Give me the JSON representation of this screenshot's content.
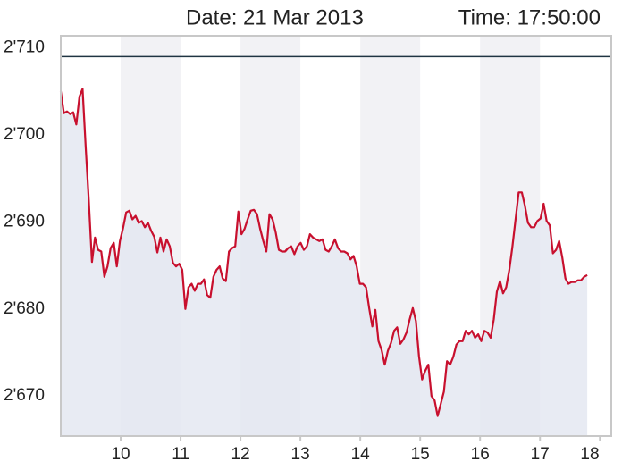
{
  "header": {
    "date": "Date: 21 Mar 2013",
    "time": "Time: 17:50:00"
  },
  "chart_data": {
    "type": "line",
    "x": [
      9.0,
      9.052,
      9.104,
      9.156,
      9.208,
      9.26,
      9.312,
      9.364,
      9.416,
      9.468,
      9.52,
      9.572,
      9.624,
      9.676,
      9.728,
      9.78,
      9.832,
      9.884,
      9.936,
      9.988,
      10.04,
      10.092,
      10.144,
      10.196,
      10.248,
      10.3,
      10.352,
      10.404,
      10.456,
      10.508,
      10.56,
      10.612,
      10.664,
      10.716,
      10.768,
      10.82,
      10.872,
      10.924,
      10.976,
      11.028,
      11.08,
      11.132,
      11.184,
      11.236,
      11.288,
      11.34,
      11.392,
      11.444,
      11.496,
      11.548,
      11.6,
      11.652,
      11.704,
      11.756,
      11.808,
      11.86,
      11.912,
      11.964,
      12.016,
      12.068,
      12.12,
      12.172,
      12.224,
      12.276,
      12.328,
      12.38,
      12.432,
      12.484,
      12.536,
      12.588,
      12.64,
      12.692,
      12.744,
      12.796,
      12.848,
      12.9,
      12.952,
      13.004,
      13.056,
      13.108,
      13.16,
      13.212,
      13.264,
      13.316,
      13.368,
      13.42,
      13.472,
      13.524,
      13.576,
      13.628,
      13.68,
      13.732,
      13.784,
      13.836,
      13.888,
      13.94,
      13.992,
      14.044,
      14.096,
      14.148,
      14.2,
      14.252,
      14.304,
      14.356,
      14.408,
      14.46,
      14.512,
      14.564,
      14.616,
      14.668,
      14.72,
      14.772,
      14.824,
      14.876,
      14.928,
      14.98,
      15.032,
      15.084,
      15.136,
      15.188,
      15.24,
      15.292,
      15.344,
      15.396,
      15.448,
      15.5,
      15.552,
      15.604,
      15.656,
      15.708,
      15.76,
      15.812,
      15.864,
      15.916,
      15.968,
      16.02,
      16.072,
      16.124,
      16.176,
      16.228,
      16.28,
      16.332,
      16.384,
      16.436,
      16.488,
      16.54,
      16.592,
      16.644,
      16.696,
      16.748,
      16.8,
      16.852,
      16.904,
      16.956,
      17.008,
      17.06,
      17.112,
      17.164,
      17.216,
      17.268,
      17.32,
      17.372,
      17.424,
      17.476,
      17.528,
      17.58,
      17.632,
      17.684,
      17.736,
      17.788
    ],
    "series": [
      {
        "color": "#c8102e",
        "fill": "#e4e7f1",
        "values": [
          2705.0,
          2702.5,
          2702.7,
          2702.4,
          2702.6,
          2701.2,
          2704.4,
          2705.3,
          2698.6,
          2692.4,
          2685.4,
          2688.2,
          2686.8,
          2686.6,
          2683.7,
          2684.9,
          2687.0,
          2687.6,
          2684.9,
          2687.8,
          2689.3,
          2691.1,
          2691.3,
          2690.3,
          2690.7,
          2689.9,
          2690.1,
          2689.4,
          2689.9,
          2689.0,
          2688.3,
          2686.5,
          2688.2,
          2686.6,
          2688.0,
          2687.2,
          2685.3,
          2684.9,
          2685.2,
          2684.5,
          2680.0,
          2682.5,
          2682.9,
          2682.1,
          2682.9,
          2682.9,
          2683.4,
          2681.6,
          2681.3,
          2683.7,
          2684.5,
          2684.9,
          2683.5,
          2683.2,
          2686.6,
          2687.0,
          2687.2,
          2691.2,
          2688.6,
          2689.2,
          2690.3,
          2691.3,
          2691.4,
          2690.9,
          2689.2,
          2687.8,
          2686.6,
          2690.9,
          2690.3,
          2688.8,
          2686.8,
          2686.6,
          2686.6,
          2687.0,
          2687.2,
          2686.3,
          2687.2,
          2687.6,
          2686.8,
          2687.2,
          2688.6,
          2688.2,
          2688.0,
          2687.8,
          2688.0,
          2686.8,
          2686.6,
          2687.2,
          2688.0,
          2687.0,
          2686.6,
          2686.6,
          2686.4,
          2685.7,
          2686.1,
          2684.9,
          2682.9,
          2682.9,
          2682.5,
          2680.1,
          2678.0,
          2679.9,
          2676.3,
          2675.3,
          2673.6,
          2675.2,
          2676.1,
          2677.5,
          2677.9,
          2676.0,
          2676.5,
          2677.3,
          2678.8,
          2680.1,
          2678.6,
          2674.6,
          2671.9,
          2672.9,
          2673.6,
          2670.0,
          2669.5,
          2667.7,
          2669.1,
          2670.5,
          2674.0,
          2673.6,
          2674.5,
          2675.9,
          2676.3,
          2676.3,
          2677.5,
          2677.1,
          2677.5,
          2676.7,
          2677.1,
          2676.3,
          2677.5,
          2677.3,
          2676.7,
          2678.8,
          2682.0,
          2683.2,
          2681.8,
          2682.5,
          2684.5,
          2687.2,
          2690.3,
          2693.4,
          2693.4,
          2691.9,
          2689.9,
          2689.4,
          2689.4,
          2690.1,
          2690.4,
          2692.1,
          2690.1,
          2689.6,
          2686.4,
          2686.8,
          2687.8,
          2685.9,
          2683.5,
          2682.9,
          2683.1,
          2683.1,
          2683.3,
          2683.3,
          2683.7,
          2683.9
        ]
      }
    ],
    "reference_line": {
      "value": 2709.0,
      "color": "#1f3442"
    },
    "xlim": [
      9.0,
      18.19
    ],
    "xticks": [
      10,
      11,
      12,
      13,
      14,
      15,
      16,
      17,
      18
    ],
    "ylim": [
      2665.4,
      2711.4
    ],
    "yticks": [
      {
        "value": 2670,
        "label": "2'670"
      },
      {
        "value": 2680,
        "label": "2'680"
      },
      {
        "value": 2690,
        "label": "2'690"
      },
      {
        "value": 2700,
        "label": "2'700"
      },
      {
        "value": 2710,
        "label": "2'710"
      }
    ],
    "band_color": "#f2f2f5"
  }
}
